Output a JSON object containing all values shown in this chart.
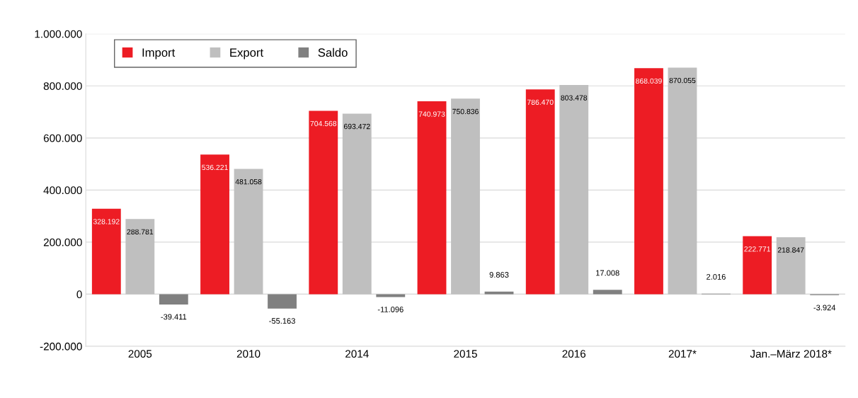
{
  "chart_data": {
    "type": "bar",
    "categories": [
      "2005",
      "2010",
      "2014",
      "2015",
      "2016",
      "2017*",
      "Jan.–März 2018*"
    ],
    "series": [
      {
        "name": "Import",
        "color": "#ed1c24",
        "values": [
          328192,
          536221,
          704568,
          740973,
          786470,
          868039,
          222771
        ],
        "value_labels": [
          "328.192",
          "536.221",
          "704.568",
          "740.973",
          "786.470",
          "868.039",
          "222.771"
        ]
      },
      {
        "name": "Export",
        "color": "#bfbfbf",
        "values": [
          288781,
          481058,
          693472,
          750836,
          803478,
          870055,
          218847
        ],
        "value_labels": [
          "288.781",
          "481.058",
          "693.472",
          "750.836",
          "803.478",
          "870.055",
          "218.847"
        ]
      },
      {
        "name": "Saldo",
        "color": "#808080",
        "values": [
          -39411,
          -55163,
          -11096,
          9863,
          17008,
          2016,
          -3924
        ],
        "value_labels": [
          "-39.411",
          "-55.163",
          "-11.096",
          "9.863",
          "17.008",
          "2.016",
          "-3.924"
        ]
      }
    ],
    "ylim": [
      -200000,
      1000000
    ],
    "yticks": [
      {
        "value": -200000,
        "label": "-200.000"
      },
      0,
      {
        "value": 200000,
        "label": "200.000"
      },
      {
        "value": 400000,
        "label": "400.000"
      },
      {
        "value": 600000,
        "label": "600.000"
      },
      {
        "value": 800000,
        "label": "800.000"
      },
      {
        "value": 1000000,
        "label": "1.000.000"
      }
    ],
    "grid": "y",
    "legend": "top left"
  }
}
